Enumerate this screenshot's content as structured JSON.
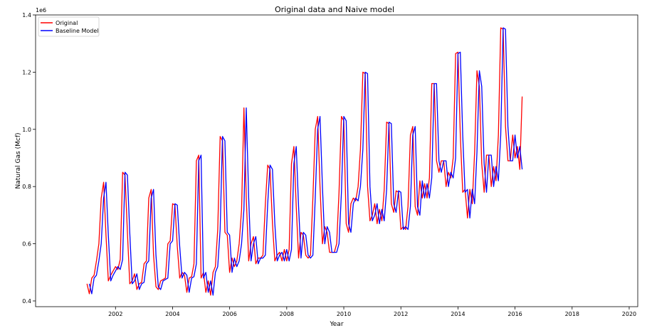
{
  "chart_data": {
    "type": "line",
    "title": "Original data and Naive model",
    "xlabel": "Year",
    "ylabel": "Natural Gas (Mcf)",
    "y_offset_text": "1e6",
    "xlim": [
      1999.2,
      2020.3
    ],
    "ylim": [
      380000,
      1400000
    ],
    "x_ticks": [
      2002,
      2004,
      2006,
      2008,
      2010,
      2012,
      2014,
      2016,
      2018,
      2020
    ],
    "x_tick_labels": [
      "2002",
      "2004",
      "2006",
      "2008",
      "2010",
      "2012",
      "2014",
      "2016",
      "2018",
      "2020"
    ],
    "y_ticks": [
      400000,
      600000,
      800000,
      1000000,
      1200000,
      1400000
    ],
    "y_tick_labels": [
      "0.4",
      "0.6",
      "0.8",
      "1.0",
      "1.2",
      "1.4"
    ],
    "grid": false,
    "legend_position": "top-left",
    "x_start": "2001-01",
    "x_step": "monthly",
    "series": [
      {
        "name": "Original",
        "color": "#ff0000",
        "values": [
          460000,
          425000,
          480000,
          490000,
          540000,
          600000,
          760000,
          815000,
          630000,
          470000,
          490000,
          505000,
          520000,
          510000,
          545000,
          850000,
          840000,
          640000,
          460000,
          470000,
          495000,
          440000,
          460000,
          465000,
          530000,
          540000,
          760000,
          790000,
          560000,
          450000,
          440000,
          470000,
          475000,
          480000,
          600000,
          610000,
          740000,
          735000,
          590000,
          480000,
          500000,
          490000,
          430000,
          480000,
          485000,
          530000,
          890000,
          910000,
          480000,
          500000,
          430000,
          470000,
          420000,
          500000,
          520000,
          650000,
          975000,
          960000,
          640000,
          630000,
          500000,
          550000,
          520000,
          540000,
          600000,
          720000,
          1075000,
          760000,
          540000,
          600000,
          625000,
          530000,
          550000,
          550000,
          560000,
          740000,
          875000,
          860000,
          670000,
          540000,
          560000,
          570000,
          540000,
          580000,
          540000,
          580000,
          880000,
          940000,
          730000,
          550000,
          640000,
          630000,
          560000,
          550000,
          560000,
          760000,
          1000000,
          1045000,
          800000,
          600000,
          660000,
          640000,
          570000,
          570000,
          570000,
          600000,
          780000,
          1045000,
          1030000,
          670000,
          640000,
          740000,
          760000,
          750000,
          800000,
          930000,
          1200000,
          1195000,
          800000,
          680000,
          700000,
          740000,
          670000,
          720000,
          680000,
          790000,
          1025000,
          1020000,
          740000,
          710000,
          785000,
          780000,
          650000,
          660000,
          650000,
          730000,
          980000,
          1010000,
          730000,
          700000,
          820000,
          760000,
          810000,
          760000,
          830000,
          1160000,
          1160000,
          890000,
          850000,
          890000,
          890000,
          800000,
          850000,
          830000,
          900000,
          1265000,
          1270000,
          980000,
          780000,
          790000,
          690000,
          790000,
          740000,
          920000,
          1205000,
          1150000,
          880000,
          780000,
          910000,
          910000,
          800000,
          870000,
          820000,
          980000,
          1355000,
          1350000,
          1010000,
          890000,
          890000,
          980000,
          900000,
          940000,
          860000,
          1115000
        ]
      },
      {
        "name": "Baseline Model",
        "color": "#0000ff",
        "lag_months": 1
      }
    ]
  }
}
